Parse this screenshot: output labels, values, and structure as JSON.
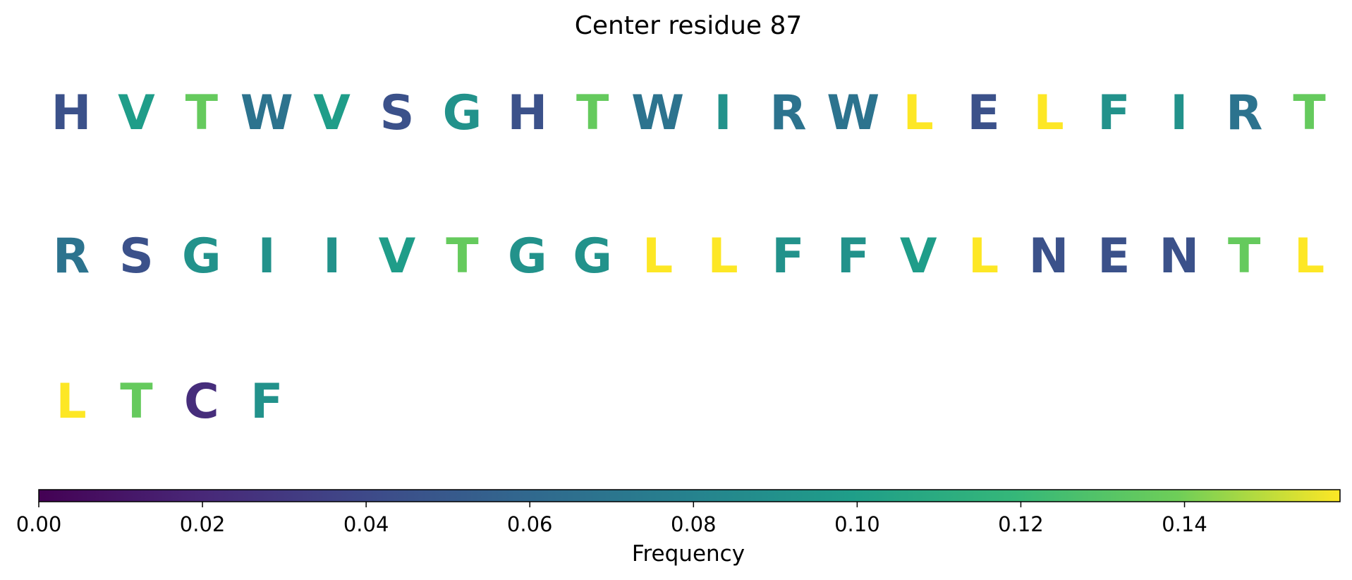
{
  "chart_data": {
    "type": "table",
    "title": "Center residue 87",
    "colormap": "viridis",
    "colorbar": {
      "label": "Frequency",
      "range": [
        0.0,
        0.159
      ],
      "ticks": [
        "0.00",
        "0.02",
        "0.04",
        "0.06",
        "0.08",
        "0.10",
        "0.12",
        "0.14"
      ]
    },
    "columns_per_row": 20,
    "residues": [
      {
        "letter": "H",
        "value": 0.045
      },
      {
        "letter": "V",
        "value": 0.099
      },
      {
        "letter": "T",
        "value": 0.136
      },
      {
        "letter": "W",
        "value": 0.068
      },
      {
        "letter": "V",
        "value": 0.099
      },
      {
        "letter": "S",
        "value": 0.045
      },
      {
        "letter": "G",
        "value": 0.091
      },
      {
        "letter": "H",
        "value": 0.045
      },
      {
        "letter": "T",
        "value": 0.136
      },
      {
        "letter": "W",
        "value": 0.068
      },
      {
        "letter": "I",
        "value": 0.091
      },
      {
        "letter": "R",
        "value": 0.068
      },
      {
        "letter": "W",
        "value": 0.068
      },
      {
        "letter": "L",
        "value": 0.159
      },
      {
        "letter": "E",
        "value": 0.045
      },
      {
        "letter": "L",
        "value": 0.159
      },
      {
        "letter": "F",
        "value": 0.091
      },
      {
        "letter": "I",
        "value": 0.091
      },
      {
        "letter": "R",
        "value": 0.068
      },
      {
        "letter": "T",
        "value": 0.136
      },
      {
        "letter": "R",
        "value": 0.068
      },
      {
        "letter": "S",
        "value": 0.045
      },
      {
        "letter": "G",
        "value": 0.091
      },
      {
        "letter": "I",
        "value": 0.091
      },
      {
        "letter": "I",
        "value": 0.091
      },
      {
        "letter": "V",
        "value": 0.099
      },
      {
        "letter": "T",
        "value": 0.136
      },
      {
        "letter": "G",
        "value": 0.091
      },
      {
        "letter": "G",
        "value": 0.091
      },
      {
        "letter": "L",
        "value": 0.159
      },
      {
        "letter": "L",
        "value": 0.159
      },
      {
        "letter": "F",
        "value": 0.091
      },
      {
        "letter": "F",
        "value": 0.091
      },
      {
        "letter": "V",
        "value": 0.099
      },
      {
        "letter": "L",
        "value": 0.159
      },
      {
        "letter": "N",
        "value": 0.045
      },
      {
        "letter": "E",
        "value": 0.045
      },
      {
        "letter": "N",
        "value": 0.045
      },
      {
        "letter": "T",
        "value": 0.136
      },
      {
        "letter": "L",
        "value": 0.159
      },
      {
        "letter": "L",
        "value": 0.159
      },
      {
        "letter": "T",
        "value": 0.136
      },
      {
        "letter": "C",
        "value": 0.023
      },
      {
        "letter": "F",
        "value": 0.091
      }
    ]
  }
}
